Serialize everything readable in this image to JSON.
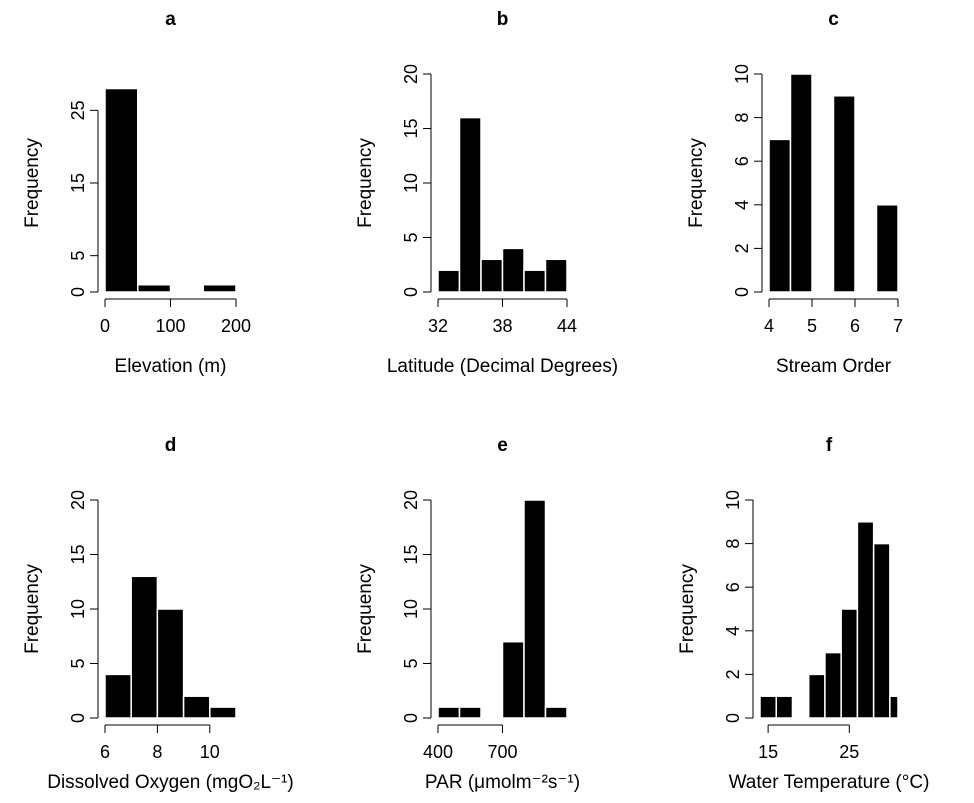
{
  "colors": {
    "bar_fill": "#000000",
    "bar_stroke": "#ffffff",
    "axis": "#000000",
    "background": "#ffffff"
  },
  "chart_data": [
    {
      "type": "bar",
      "title": "a",
      "xlabel": "Elevation (m)",
      "ylabel": "Frequency",
      "xlim": [
        0,
        200
      ],
      "ylim": [
        0,
        30
      ],
      "xticks": [
        0,
        100,
        200
      ],
      "xtick_labels": [
        "0",
        "100",
        "200"
      ],
      "yticks": [
        0,
        5,
        15,
        25
      ],
      "ytick_labels": [
        "0",
        "5",
        "15",
        "25"
      ],
      "bins": [
        [
          0,
          50
        ],
        [
          50,
          100
        ],
        [
          100,
          150
        ],
        [
          150,
          200
        ]
      ],
      "values": [
        28,
        1,
        0,
        1
      ]
    },
    {
      "type": "bar",
      "title": "b",
      "xlabel": "Latitude (Decimal Degrees)",
      "ylabel": "Frequency",
      "xlim": [
        32,
        44
      ],
      "ylim": [
        0,
        20
      ],
      "xticks": [
        32,
        38,
        44
      ],
      "xtick_labels": [
        "32",
        "38",
        "44"
      ],
      "yticks": [
        0,
        5,
        10,
        15,
        20
      ],
      "ytick_labels": [
        "0",
        "5",
        "10",
        "15",
        "20"
      ],
      "bins": [
        [
          32,
          34
        ],
        [
          34,
          36
        ],
        [
          36,
          38
        ],
        [
          38,
          40
        ],
        [
          40,
          42
        ],
        [
          42,
          44
        ]
      ],
      "values": [
        2,
        16,
        3,
        4,
        2,
        3
      ]
    },
    {
      "type": "bar",
      "title": "c",
      "xlabel": "Stream Order",
      "ylabel": "Frequency",
      "xlim": [
        4,
        7
      ],
      "ylim": [
        0,
        10
      ],
      "xticks": [
        4,
        5,
        6,
        7
      ],
      "xtick_labels": [
        "4",
        "5",
        "6",
        "7"
      ],
      "yticks": [
        0,
        2,
        4,
        6,
        8,
        10
      ],
      "ytick_labels": [
        "0",
        "2",
        "4",
        "6",
        "8",
        "10"
      ],
      "bins": [
        [
          4,
          4.5
        ],
        [
          4.5,
          5
        ],
        [
          5,
          5.5
        ],
        [
          5.5,
          6
        ],
        [
          6,
          6.5
        ],
        [
          6.5,
          7
        ]
      ],
      "values": [
        7,
        10,
        0,
        9,
        0,
        4
      ]
    },
    {
      "type": "bar",
      "title": "d",
      "xlabel": "Dissolved  Oxygen  (mgO₂L⁻¹)",
      "ylabel": "Frequency",
      "xlim": [
        6,
        11
      ],
      "ylim": [
        0,
        20
      ],
      "xticks": [
        6,
        8,
        10
      ],
      "xtick_labels": [
        "6",
        "8",
        "10"
      ],
      "yticks": [
        0,
        5,
        10,
        15,
        20
      ],
      "ytick_labels": [
        "0",
        "5",
        "10",
        "15",
        "20"
      ],
      "bins": [
        [
          6,
          7
        ],
        [
          7,
          8
        ],
        [
          8,
          9
        ],
        [
          9,
          10
        ],
        [
          10,
          11
        ]
      ],
      "values": [
        4,
        13,
        10,
        2,
        1
      ]
    },
    {
      "type": "bar",
      "title": "e",
      "xlabel": "PAR  (μmolm⁻²s⁻¹)",
      "ylabel": "Frequency",
      "xlim": [
        400,
        1000
      ],
      "ylim": [
        0,
        20
      ],
      "xticks": [
        400,
        700
      ],
      "xtick_labels": [
        "400",
        "700"
      ],
      "yticks": [
        0,
        5,
        10,
        15,
        20
      ],
      "ytick_labels": [
        "0",
        "5",
        "10",
        "15",
        "20"
      ],
      "bins": [
        [
          400,
          500
        ],
        [
          500,
          600
        ],
        [
          600,
          700
        ],
        [
          700,
          800
        ],
        [
          800,
          900
        ],
        [
          900,
          1000
        ]
      ],
      "values": [
        1,
        1,
        0,
        7,
        20,
        1
      ]
    },
    {
      "type": "bar",
      "title": "f",
      "xlabel": "Water  Temperature  (°C)",
      "ylabel": "Frequency",
      "xlim": [
        14,
        31
      ],
      "ylim": [
        0,
        10
      ],
      "xticks": [
        15,
        25
      ],
      "xtick_labels": [
        "15",
        "25"
      ],
      "yticks": [
        0,
        2,
        4,
        6,
        8,
        10
      ],
      "ytick_labels": [
        "0",
        "2",
        "4",
        "6",
        "8",
        "10"
      ],
      "bins": [
        [
          14,
          16
        ],
        [
          16,
          18
        ],
        [
          18,
          20
        ],
        [
          20,
          22
        ],
        [
          22,
          24
        ],
        [
          24,
          26
        ],
        [
          26,
          28
        ],
        [
          28,
          30
        ],
        [
          30,
          31
        ]
      ],
      "values": [
        1,
        1,
        0,
        2,
        3,
        5,
        9,
        8,
        1
      ]
    }
  ]
}
